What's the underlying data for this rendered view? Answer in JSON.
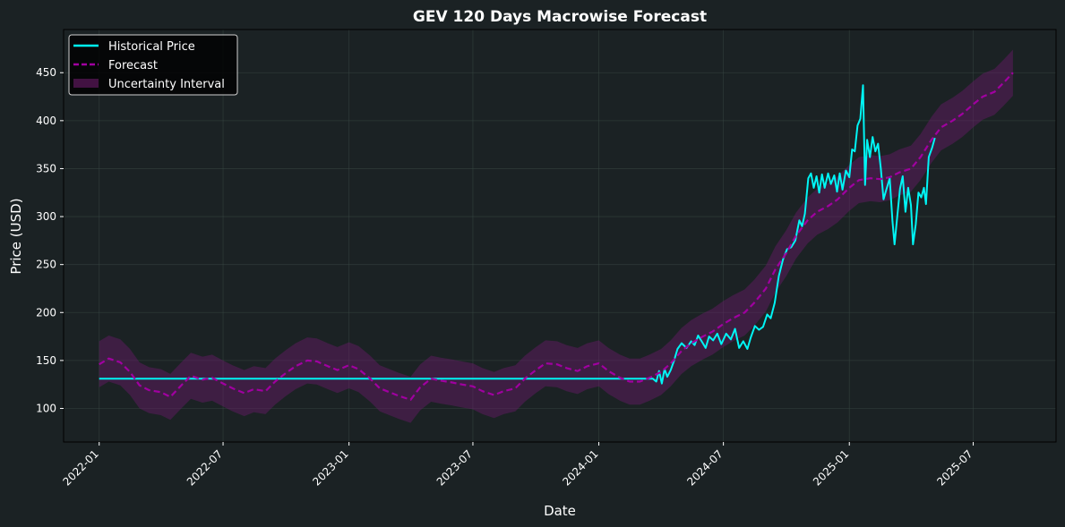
{
  "chart_data": {
    "type": "line",
    "title": "GEV 120 Days Macrowise Forecast",
    "xlabel": "Date",
    "ylabel": "Price (USD)",
    "xlim": [
      "2021-11-10",
      "2025-10-30"
    ],
    "ylim": [
      65,
      495
    ],
    "x_ticks": [
      "2022-01",
      "2022-07",
      "2023-01",
      "2023-07",
      "2024-01",
      "2024-07",
      "2025-01",
      "2025-07"
    ],
    "y_ticks": [
      100,
      150,
      200,
      250,
      300,
      350,
      400,
      450
    ],
    "grid": true,
    "legend_position": "top-left",
    "colors": {
      "background": "#1b2224",
      "historical": "#00f5f5",
      "forecast": "#a000a0",
      "interval": "#6a1a6a"
    },
    "series": [
      {
        "name": "Historical Price",
        "style": "solid",
        "points": [
          [
            "2022-01-01",
            131
          ],
          [
            "2024-03-20",
            131
          ],
          [
            "2024-03-25",
            128
          ],
          [
            "2024-03-29",
            139
          ],
          [
            "2024-04-02",
            126
          ],
          [
            "2024-04-06",
            141
          ],
          [
            "2024-04-10",
            133
          ],
          [
            "2024-04-15",
            140
          ],
          [
            "2024-04-20",
            150
          ],
          [
            "2024-04-25",
            162
          ],
          [
            "2024-05-01",
            168
          ],
          [
            "2024-05-08",
            163
          ],
          [
            "2024-05-15",
            170
          ],
          [
            "2024-05-20",
            166
          ],
          [
            "2024-05-25",
            176
          ],
          [
            "2024-06-01",
            168
          ],
          [
            "2024-06-05",
            163
          ],
          [
            "2024-06-10",
            175
          ],
          [
            "2024-06-16",
            171
          ],
          [
            "2024-06-22",
            178
          ],
          [
            "2024-06-28",
            167
          ],
          [
            "2024-07-05",
            178
          ],
          [
            "2024-07-12",
            172
          ],
          [
            "2024-07-18",
            183
          ],
          [
            "2024-07-24",
            163
          ],
          [
            "2024-07-30",
            170
          ],
          [
            "2024-08-05",
            162
          ],
          [
            "2024-08-10",
            174
          ],
          [
            "2024-08-16",
            186
          ],
          [
            "2024-08-22",
            182
          ],
          [
            "2024-08-28",
            185
          ],
          [
            "2024-09-03",
            198
          ],
          [
            "2024-09-08",
            194
          ],
          [
            "2024-09-14",
            210
          ],
          [
            "2024-09-20",
            238
          ],
          [
            "2024-09-26",
            255
          ],
          [
            "2024-10-02",
            266
          ],
          [
            "2024-10-08",
            268
          ],
          [
            "2024-10-14",
            275
          ],
          [
            "2024-10-20",
            296
          ],
          [
            "2024-10-24",
            290
          ],
          [
            "2024-10-28",
            303
          ],
          [
            "2024-11-02",
            340
          ],
          [
            "2024-11-06",
            345
          ],
          [
            "2024-11-10",
            330
          ],
          [
            "2024-11-14",
            342
          ],
          [
            "2024-11-18",
            325
          ],
          [
            "2024-11-22",
            344
          ],
          [
            "2024-11-26",
            330
          ],
          [
            "2024-12-01",
            345
          ],
          [
            "2024-12-05",
            334
          ],
          [
            "2024-12-10",
            343
          ],
          [
            "2024-12-14",
            326
          ],
          [
            "2024-12-18",
            345
          ],
          [
            "2024-12-22",
            328
          ],
          [
            "2024-12-27",
            348
          ],
          [
            "2025-01-01",
            341
          ],
          [
            "2025-01-05",
            370
          ],
          [
            "2025-01-09",
            368
          ],
          [
            "2025-01-13",
            395
          ],
          [
            "2025-01-17",
            402
          ],
          [
            "2025-01-21",
            437
          ],
          [
            "2025-01-24",
            333
          ],
          [
            "2025-01-27",
            380
          ],
          [
            "2025-01-31",
            362
          ],
          [
            "2025-02-04",
            383
          ],
          [
            "2025-02-08",
            368
          ],
          [
            "2025-02-12",
            376
          ],
          [
            "2025-02-16",
            350
          ],
          [
            "2025-02-20",
            318
          ],
          [
            "2025-02-24",
            328
          ],
          [
            "2025-03-01",
            340
          ],
          [
            "2025-03-05",
            295
          ],
          [
            "2025-03-08",
            271
          ],
          [
            "2025-03-12",
            300
          ],
          [
            "2025-03-16",
            329
          ],
          [
            "2025-03-20",
            342
          ],
          [
            "2025-03-24",
            305
          ],
          [
            "2025-03-28",
            330
          ],
          [
            "2025-04-01",
            312
          ],
          [
            "2025-04-04",
            271
          ],
          [
            "2025-04-08",
            292
          ],
          [
            "2025-04-12",
            325
          ],
          [
            "2025-04-16",
            320
          ],
          [
            "2025-04-20",
            330
          ],
          [
            "2025-04-23",
            313
          ],
          [
            "2025-04-27",
            362
          ],
          [
            "2025-05-02",
            372
          ],
          [
            "2025-05-06",
            382
          ]
        ]
      },
      {
        "name": "Forecast",
        "style": "dashed",
        "points": [
          [
            "2022-01-01",
            146
          ],
          [
            "2022-01-15",
            152
          ],
          [
            "2022-02-01",
            148
          ],
          [
            "2022-02-15",
            138
          ],
          [
            "2022-03-01",
            124
          ],
          [
            "2022-03-15",
            119
          ],
          [
            "2022-04-01",
            117
          ],
          [
            "2022-04-15",
            112
          ],
          [
            "2022-05-01",
            124
          ],
          [
            "2022-05-15",
            134
          ],
          [
            "2022-06-01",
            130
          ],
          [
            "2022-06-15",
            132
          ],
          [
            "2022-07-01",
            126
          ],
          [
            "2022-07-15",
            121
          ],
          [
            "2022-08-01",
            116
          ],
          [
            "2022-08-15",
            120
          ],
          [
            "2022-09-01",
            118
          ],
          [
            "2022-09-15",
            128
          ],
          [
            "2022-10-01",
            137
          ],
          [
            "2022-10-15",
            144
          ],
          [
            "2022-11-01",
            150
          ],
          [
            "2022-11-15",
            149
          ],
          [
            "2022-12-01",
            144
          ],
          [
            "2022-12-15",
            140
          ],
          [
            "2023-01-01",
            145
          ],
          [
            "2023-01-15",
            141
          ],
          [
            "2023-02-01",
            131
          ],
          [
            "2023-02-15",
            121
          ],
          [
            "2023-03-01",
            117
          ],
          [
            "2023-03-15",
            113
          ],
          [
            "2023-04-01",
            109
          ],
          [
            "2023-04-15",
            122
          ],
          [
            "2023-05-01",
            131
          ],
          [
            "2023-05-15",
            129
          ],
          [
            "2023-06-01",
            127
          ],
          [
            "2023-06-15",
            125
          ],
          [
            "2023-07-01",
            123
          ],
          [
            "2023-07-15",
            118
          ],
          [
            "2023-08-01",
            114
          ],
          [
            "2023-08-15",
            118
          ],
          [
            "2023-09-01",
            121
          ],
          [
            "2023-09-15",
            131
          ],
          [
            "2023-10-01",
            140
          ],
          [
            "2023-10-15",
            147
          ],
          [
            "2023-11-01",
            146
          ],
          [
            "2023-11-15",
            142
          ],
          [
            "2023-12-01",
            139
          ],
          [
            "2023-12-15",
            144
          ],
          [
            "2024-01-01",
            147
          ],
          [
            "2024-01-15",
            139
          ],
          [
            "2024-02-01",
            132
          ],
          [
            "2024-02-15",
            128
          ],
          [
            "2024-03-01",
            128
          ],
          [
            "2024-03-15",
            132
          ],
          [
            "2024-04-01",
            138
          ],
          [
            "2024-04-15",
            147
          ],
          [
            "2024-05-01",
            160
          ],
          [
            "2024-05-15",
            168
          ],
          [
            "2024-06-01",
            175
          ],
          [
            "2024-06-15",
            180
          ],
          [
            "2024-07-01",
            188
          ],
          [
            "2024-07-15",
            194
          ],
          [
            "2024-08-01",
            200
          ],
          [
            "2024-08-15",
            210
          ],
          [
            "2024-09-01",
            225
          ],
          [
            "2024-09-15",
            245
          ],
          [
            "2024-10-01",
            262
          ],
          [
            "2024-10-15",
            280
          ],
          [
            "2024-11-01",
            296
          ],
          [
            "2024-11-15",
            305
          ],
          [
            "2024-12-01",
            311
          ],
          [
            "2024-12-15",
            318
          ],
          [
            "2025-01-01",
            330
          ],
          [
            "2025-01-15",
            338
          ],
          [
            "2025-02-01",
            340
          ],
          [
            "2025-02-15",
            339
          ],
          [
            "2025-03-01",
            341
          ],
          [
            "2025-03-15",
            346
          ],
          [
            "2025-04-01",
            350
          ],
          [
            "2025-04-15",
            362
          ],
          [
            "2025-05-01",
            380
          ],
          [
            "2025-05-15",
            393
          ],
          [
            "2025-06-01",
            400
          ],
          [
            "2025-06-15",
            407
          ],
          [
            "2025-07-01",
            417
          ],
          [
            "2025-07-15",
            425
          ],
          [
            "2025-08-01",
            430
          ],
          [
            "2025-08-15",
            440
          ],
          [
            "2025-08-28",
            450
          ]
        ]
      },
      {
        "name": "Uncertainty Interval",
        "style": "band",
        "half_width": 24
      }
    ]
  }
}
